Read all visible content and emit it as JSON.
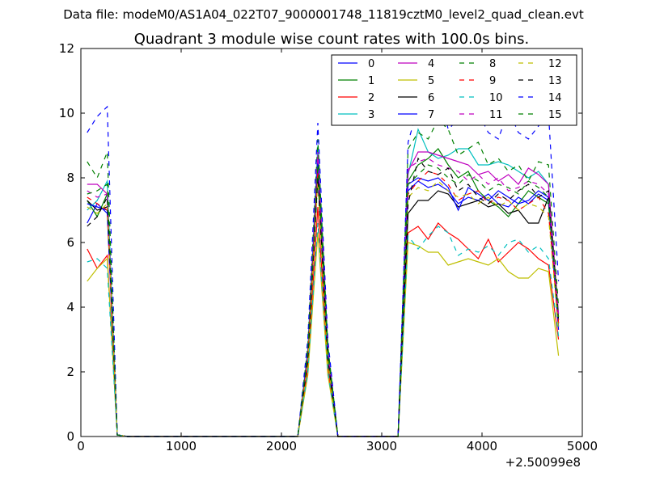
{
  "suptitle": "Data file: modeM0/AS1A04_022T07_9000001748_11819cztM0_level2_quad_clean.evt",
  "chart_data": {
    "type": "line",
    "title": "Quadrant 3 module wise count rates with 100.0s bins.",
    "xlabel": "",
    "ylabel": "",
    "x_offset_label": "+2.50099e8",
    "xlim": [
      0,
      5000
    ],
    "ylim": [
      0,
      12
    ],
    "x_ticks": [
      0,
      1000,
      2000,
      3000,
      4000,
      5000
    ],
    "y_ticks": [
      0,
      2,
      4,
      6,
      8,
      10,
      12
    ],
    "grid": false,
    "legend_position": "top-right",
    "legend_columns": 4,
    "segments": [
      {
        "x": [
          63,
          163,
          263,
          363
        ],
        "index": [
          0,
          1,
          2,
          3
        ]
      },
      {
        "x": [
          2163,
          2263,
          2363,
          2463,
          2563
        ],
        "index": [
          4,
          5,
          6,
          7,
          8
        ]
      },
      {
        "x": [
          3163,
          3263,
          3363,
          3463,
          3563,
          3663,
          3763,
          3863,
          3963,
          4063,
          4163,
          4263,
          4363,
          4463,
          4563,
          4663,
          4763
        ],
        "index": [
          9,
          10,
          11,
          12,
          13,
          14,
          15,
          16,
          17,
          18,
          19,
          20,
          21,
          22,
          23,
          24,
          25
        ]
      }
    ],
    "x": [
      63,
      163,
      263,
      363,
      463,
      563,
      663,
      763,
      863,
      963,
      1063,
      1163,
      1263,
      1363,
      1463,
      1563,
      1663,
      1763,
      1863,
      1963,
      2063,
      2163,
      2263,
      2363,
      2463,
      2563,
      2663,
      2763,
      2863,
      2963,
      3063,
      3163,
      3263,
      3363,
      3463,
      3563,
      3663,
      3763,
      3863,
      3963,
      4063,
      4163,
      4263,
      4363,
      4463,
      4563,
      4663,
      4763
    ],
    "series": [
      {
        "name": "0",
        "color": "#0000ff",
        "dash": "solid",
        "values": [
          6.6,
          7.2,
          6.9,
          0.05,
          0,
          0,
          0,
          0,
          0,
          0,
          0,
          0,
          0,
          0,
          0,
          0,
          0,
          0,
          0,
          0,
          0,
          0,
          2.5,
          8.3,
          2.5,
          0,
          0,
          0,
          0,
          0,
          0,
          0,
          7.6,
          7.9,
          7.7,
          7.8,
          7.6,
          7.2,
          7.4,
          7.3,
          7.5,
          7.2,
          7.1,
          7.4,
          7.2,
          7.5,
          7.3,
          3.3
        ]
      },
      {
        "name": "1",
        "color": "#008000",
        "dash": "solid",
        "values": [
          7.3,
          6.8,
          7.5,
          0.05,
          0,
          0,
          0,
          0,
          0,
          0,
          0,
          0,
          0,
          0,
          0,
          0,
          0,
          0,
          0,
          0,
          0,
          0,
          2.6,
          8.6,
          2.6,
          0,
          0,
          0,
          0,
          0,
          0,
          0,
          7.9,
          8.4,
          8.6,
          8.9,
          8.4,
          8.0,
          8.2,
          7.6,
          7.3,
          7.1,
          6.8,
          7.2,
          7.6,
          7.4,
          7.2,
          3.6
        ]
      },
      {
        "name": "2",
        "color": "#ff0000",
        "dash": "solid",
        "values": [
          5.8,
          5.2,
          5.6,
          0.05,
          0,
          0,
          0,
          0,
          0,
          0,
          0,
          0,
          0,
          0,
          0,
          0,
          0,
          0,
          0,
          0,
          0,
          0,
          2.1,
          7.1,
          2.1,
          0,
          0,
          0,
          0,
          0,
          0,
          0,
          6.3,
          6.5,
          6.1,
          6.6,
          6.3,
          6.1,
          5.8,
          5.5,
          6.1,
          5.4,
          5.7,
          6.0,
          5.8,
          5.5,
          5.3,
          3.0
        ]
      },
      {
        "name": "3",
        "color": "#00bfbf",
        "dash": "solid",
        "values": [
          7.0,
          7.3,
          7.9,
          0.05,
          0,
          0,
          0,
          0,
          0,
          0,
          0,
          0,
          0,
          0,
          0,
          0,
          0,
          0,
          0,
          0,
          0,
          0,
          2.7,
          9.0,
          2.7,
          0,
          0,
          0,
          0,
          0,
          0,
          0,
          8.1,
          9.5,
          8.8,
          8.6,
          8.7,
          8.9,
          8.9,
          8.4,
          8.4,
          8.5,
          8.4,
          8.2,
          8.0,
          8.2,
          7.8,
          3.6
        ]
      },
      {
        "name": "4",
        "color": "#bf00bf",
        "dash": "solid",
        "values": [
          7.8,
          7.8,
          7.5,
          0.05,
          0,
          0,
          0,
          0,
          0,
          0,
          0,
          0,
          0,
          0,
          0,
          0,
          0,
          0,
          0,
          0,
          0,
          0,
          2.6,
          8.7,
          2.6,
          0,
          0,
          0,
          0,
          0,
          0,
          0,
          8.2,
          8.8,
          8.8,
          8.7,
          8.6,
          8.5,
          8.4,
          8.1,
          8.2,
          7.9,
          8.1,
          7.8,
          8.3,
          8.1,
          7.8,
          3.8
        ]
      },
      {
        "name": "5",
        "color": "#bfbf00",
        "dash": "solid",
        "values": [
          4.8,
          5.2,
          5.5,
          0.05,
          0,
          0,
          0,
          0,
          0,
          0,
          0,
          0,
          0,
          0,
          0,
          0,
          0,
          0,
          0,
          0,
          0,
          0,
          1.9,
          6.3,
          1.9,
          0,
          0,
          0,
          0,
          0,
          0,
          0,
          6.0,
          5.9,
          5.7,
          5.7,
          5.3,
          5.4,
          5.5,
          5.4,
          5.3,
          5.5,
          5.1,
          4.9,
          4.9,
          5.2,
          5.1,
          2.5
        ]
      },
      {
        "name": "6",
        "color": "#000000",
        "dash": "solid",
        "values": [
          7.3,
          7.0,
          7.1,
          0.05,
          0,
          0,
          0,
          0,
          0,
          0,
          0,
          0,
          0,
          0,
          0,
          0,
          0,
          0,
          0,
          0,
          0,
          0,
          2.4,
          8.1,
          2.4,
          0,
          0,
          0,
          0,
          0,
          0,
          0,
          6.9,
          7.3,
          7.3,
          7.6,
          7.5,
          7.1,
          7.2,
          7.3,
          7.1,
          7.2,
          6.9,
          7.0,
          6.6,
          6.6,
          7.4,
          3.5
        ]
      },
      {
        "name": "7",
        "color": "#0000ff",
        "dash": "solid",
        "values": [
          7.2,
          7.1,
          7.0,
          0.05,
          0,
          0,
          0,
          0,
          0,
          0,
          0,
          0,
          0,
          0,
          0,
          0,
          0,
          0,
          0,
          0,
          0,
          0,
          2.5,
          8.5,
          2.5,
          0,
          0,
          0,
          0,
          0,
          0,
          0,
          7.8,
          8.0,
          7.9,
          8.0,
          7.7,
          7.0,
          7.7,
          7.5,
          7.3,
          7.6,
          7.4,
          7.2,
          7.3,
          7.6,
          7.4,
          3.4
        ]
      },
      {
        "name": "8",
        "color": "#008000",
        "dash": "dashed",
        "values": [
          8.5,
          8.0,
          8.8,
          0.05,
          0,
          0,
          0,
          0,
          0,
          0,
          0,
          0,
          0,
          0,
          0,
          0,
          0,
          0,
          0,
          0,
          0,
          0,
          2.8,
          9.2,
          2.8,
          0,
          0,
          0,
          0,
          0,
          0,
          0,
          8.9,
          9.4,
          9.2,
          9.8,
          9.5,
          8.7,
          8.9,
          9.1,
          8.4,
          8.6,
          8.2,
          8.4,
          7.9,
          8.5,
          8.4,
          4.0
        ]
      },
      {
        "name": "9",
        "color": "#ff0000",
        "dash": "dashed",
        "values": [
          7.4,
          7.2,
          7.0,
          0.05,
          0,
          0,
          0,
          0,
          0,
          0,
          0,
          0,
          0,
          0,
          0,
          0,
          0,
          0,
          0,
          0,
          0,
          0,
          2.4,
          8.2,
          2.4,
          0,
          0,
          0,
          0,
          0,
          0,
          0,
          7.5,
          7.9,
          8.2,
          8.1,
          7.8,
          7.3,
          7.5,
          7.6,
          7.2,
          7.4,
          7.3,
          7.0,
          7.2,
          7.4,
          6.9,
          3.5
        ]
      },
      {
        "name": "10",
        "color": "#00bfbf",
        "dash": "dashed",
        "values": [
          5.4,
          5.5,
          5.2,
          0.05,
          0,
          0,
          0,
          0,
          0,
          0,
          0,
          0,
          0,
          0,
          0,
          0,
          0,
          0,
          0,
          0,
          0,
          0,
          2.0,
          6.6,
          2.0,
          0,
          0,
          0,
          0,
          0,
          0,
          0,
          6.2,
          5.8,
          6.2,
          6.5,
          6.3,
          5.6,
          5.8,
          5.7,
          5.9,
          5.6,
          6.0,
          6.1,
          5.7,
          5.9,
          5.5,
          3.1
        ]
      },
      {
        "name": "11",
        "color": "#bf00bf",
        "dash": "dashed",
        "values": [
          7.6,
          7.4,
          7.5,
          0.05,
          0,
          0,
          0,
          0,
          0,
          0,
          0,
          0,
          0,
          0,
          0,
          0,
          0,
          0,
          0,
          0,
          0,
          0,
          2.6,
          8.8,
          2.6,
          0,
          0,
          0,
          0,
          0,
          0,
          0,
          8.3,
          8.5,
          8.6,
          8.4,
          8.3,
          8.2,
          7.9,
          8.1,
          7.8,
          8.0,
          7.6,
          7.7,
          7.9,
          7.8,
          7.5,
          3.7
        ]
      },
      {
        "name": "12",
        "color": "#bfbf00",
        "dash": "dashed",
        "values": [
          7.1,
          6.9,
          7.2,
          0.05,
          0,
          0,
          0,
          0,
          0,
          0,
          0,
          0,
          0,
          0,
          0,
          0,
          0,
          0,
          0,
          0,
          0,
          0,
          2.3,
          7.9,
          2.3,
          0,
          0,
          0,
          0,
          0,
          0,
          0,
          7.4,
          7.7,
          7.6,
          7.9,
          7.6,
          7.4,
          7.5,
          7.2,
          7.4,
          7.1,
          7.3,
          7.0,
          7.2,
          7.1,
          6.8,
          3.3
        ]
      },
      {
        "name": "13",
        "color": "#000000",
        "dash": "dashed",
        "values": [
          6.5,
          6.8,
          7.4,
          0.05,
          0,
          0,
          0,
          0,
          0,
          0,
          0,
          0,
          0,
          0,
          0,
          0,
          0,
          0,
          0,
          0,
          0,
          0,
          2.4,
          8.0,
          2.4,
          0,
          0,
          0,
          0,
          0,
          0,
          0,
          7.2,
          8.6,
          8.2,
          8.1,
          8.3,
          7.6,
          7.8,
          7.4,
          7.2,
          7.5,
          7.3,
          7.6,
          7.8,
          7.4,
          7.6,
          3.6
        ]
      },
      {
        "name": "14",
        "color": "#0000ff",
        "dash": "dashed",
        "values": [
          9.4,
          9.9,
          10.2,
          0.05,
          0,
          0,
          0,
          0,
          0,
          0,
          0,
          0,
          0,
          0,
          0,
          0,
          0,
          0,
          0,
          0,
          0,
          0,
          3.0,
          9.7,
          3.0,
          0,
          0,
          0,
          0,
          0,
          0,
          0,
          9.1,
          10.2,
          10.0,
          10.8,
          9.5,
          9.8,
          10.4,
          10.0,
          9.4,
          9.2,
          10.1,
          9.4,
          9.2,
          9.6,
          10.0,
          4.8
        ]
      },
      {
        "name": "15",
        "color": "#008000",
        "dash": "dashed",
        "values": [
          7.5,
          7.6,
          7.8,
          0.05,
          0,
          0,
          0,
          0,
          0,
          0,
          0,
          0,
          0,
          0,
          0,
          0,
          0,
          0,
          0,
          0,
          0,
          0,
          2.6,
          8.4,
          2.6,
          0,
          0,
          0,
          0,
          0,
          0,
          0,
          7.8,
          8.1,
          8.4,
          8.3,
          8.0,
          7.8,
          8.1,
          7.9,
          7.6,
          7.8,
          7.7,
          7.5,
          7.9,
          7.7,
          7.4,
          3.7
        ]
      }
    ]
  }
}
